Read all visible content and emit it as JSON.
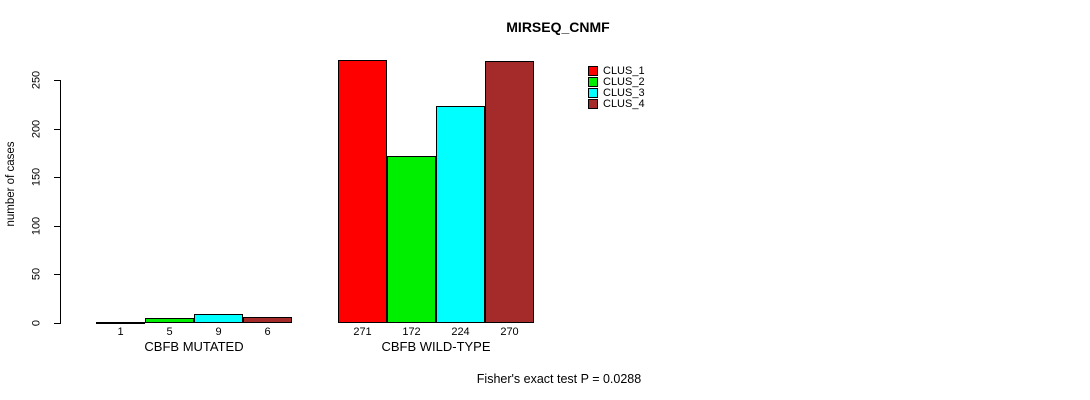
{
  "page": {
    "background": "#ffffff"
  },
  "chart_data": {
    "type": "bar",
    "title": "MIRSEQ_CNMF",
    "xlabel": "",
    "ylabel": "number of cases",
    "categories": [
      "CBFB MUTATED",
      "CBFB WILD-TYPE"
    ],
    "series": [
      {
        "name": "CLUS_1",
        "color": "#ff0000",
        "values": [
          1,
          271
        ]
      },
      {
        "name": "CLUS_2",
        "color": "#00ee00",
        "values": [
          5,
          172
        ]
      },
      {
        "name": "CLUS_3",
        "color": "#00ffff",
        "values": [
          9,
          224
        ]
      },
      {
        "name": "CLUS_4",
        "color": "#a52a2a",
        "values": [
          6,
          270
        ]
      }
    ],
    "bar_value_labels": [
      [
        "1",
        "5",
        "9",
        "6"
      ],
      [
        "271",
        "172",
        "224",
        "270"
      ]
    ],
    "bar_outline_color": "#000000",
    "yticks": [
      0,
      50,
      100,
      150,
      200,
      250
    ],
    "ylim": [
      0,
      280
    ],
    "grid": false,
    "legend": {
      "position": "top-right",
      "entries": [
        "CLUS_1",
        "CLUS_2",
        "CLUS_3",
        "CLUS_4"
      ]
    },
    "annotation": "Fisher's exact test P = 0.0288"
  }
}
